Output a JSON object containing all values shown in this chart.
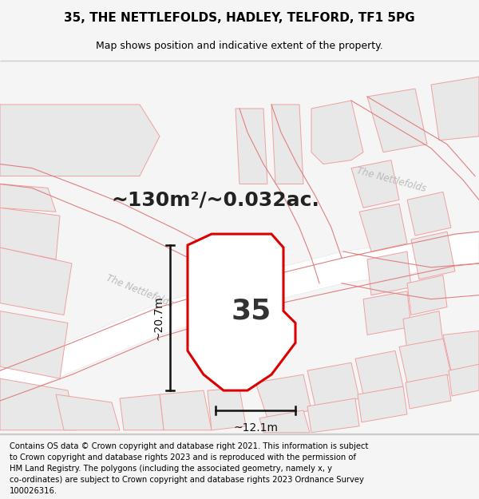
{
  "title": "35, THE NETTLEFOLDS, HADLEY, TELFORD, TF1 5PG",
  "subtitle": "Map shows position and indicative extent of the property.",
  "footer": "Contains OS data © Crown copyright and database right 2021. This information is subject to Crown copyright and database rights 2023 and is reproduced with the permission of HM Land Registry. The polygons (including the associated geometry, namely x, y co-ordinates) are subject to Crown copyright and database rights 2023 Ordnance Survey 100026316.",
  "area_text": "~130m²/~0.032ac.",
  "property_number": "35",
  "dim_width": "~12.1m",
  "dim_height": "~20.7m",
  "bg_color": "#f5f5f5",
  "map_bg": "#ffffff",
  "street_label_left": "The Nettlefolds",
  "street_label_right": "The Nettlefolds",
  "title_fontsize": 11,
  "subtitle_fontsize": 9,
  "footer_fontsize": 7.2,
  "area_fontsize": 18,
  "number_fontsize": 26,
  "dim_fontsize": 10,
  "prop_color": "#dd0000",
  "street_color": "#bbbbbb",
  "building_edge": "#f0a0a0",
  "building_face": "#f5f5f5",
  "road_face": "#ffffff",
  "gray_face": "#e8e8e8"
}
